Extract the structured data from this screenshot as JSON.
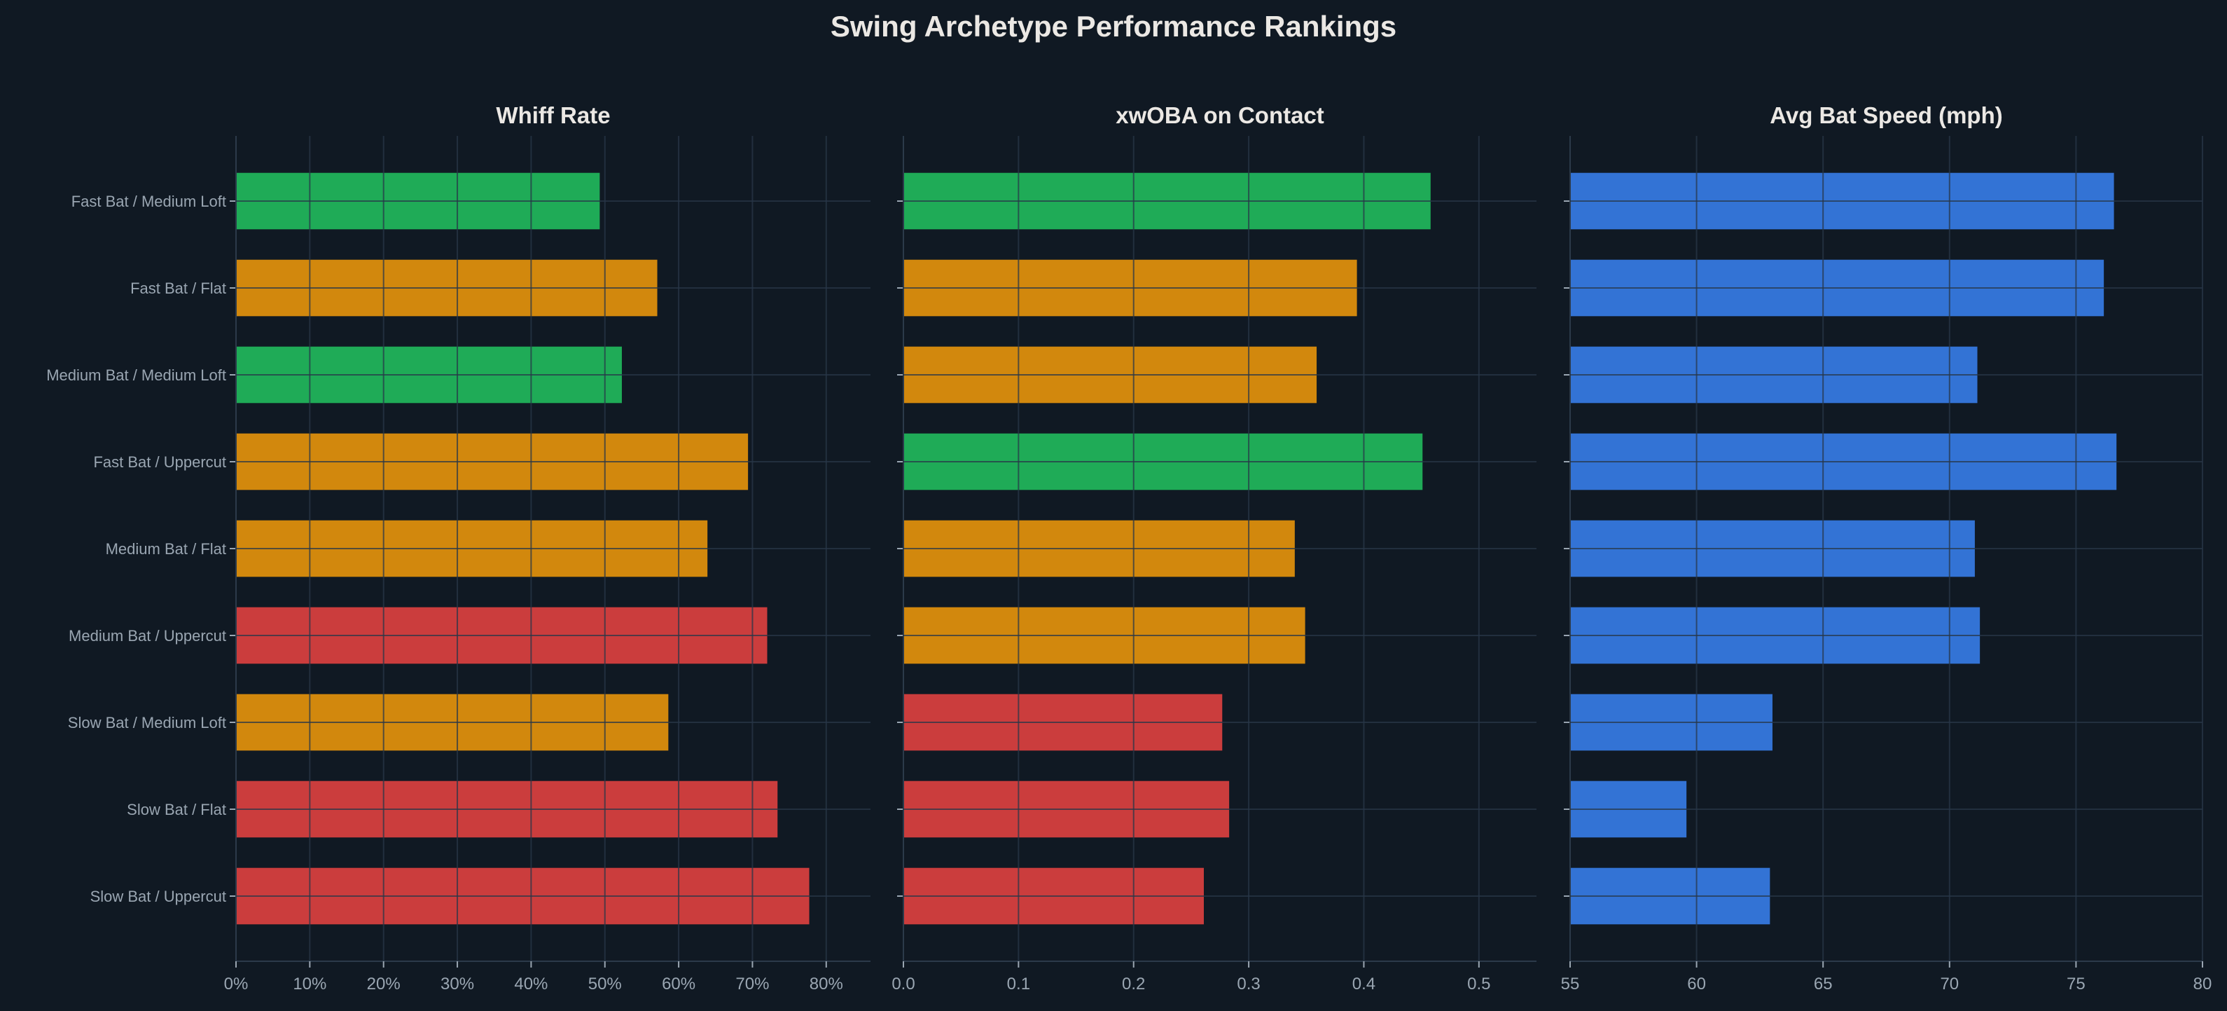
{
  "title": "Swing Archetype Performance Rankings",
  "colors": {
    "background": "#101923",
    "good": "#1fab57",
    "mid": "#d2880d",
    "bad": "#cb3d3d",
    "speed": "#3373d5",
    "text": "#ebe8e4",
    "tick": "#9aa6b2",
    "grid": "#1e2a38",
    "spine": "#2c3a4a"
  },
  "chart_data": [
    {
      "type": "bar",
      "orientation": "horizontal",
      "title": "Whiff Rate",
      "categories": [
        "Fast Bat / Medium Loft",
        "Fast Bat / Flat",
        "Medium Bat / Medium Loft",
        "Fast Bat / Uppercut",
        "Medium Bat / Flat",
        "Medium Bat / Uppercut",
        "Slow Bat / Medium Loft",
        "Slow Bat / Flat",
        "Slow Bat / Uppercut"
      ],
      "values": [
        0.493,
        0.571,
        0.523,
        0.694,
        0.639,
        0.72,
        0.586,
        0.734,
        0.777
      ],
      "bar_colors": [
        "good",
        "mid",
        "good",
        "mid",
        "mid",
        "bad",
        "mid",
        "bad",
        "bad"
      ],
      "xlim": [
        0,
        0.86
      ],
      "xticks": [
        0,
        0.1,
        0.2,
        0.3,
        0.4,
        0.5,
        0.6,
        0.7,
        0.8
      ],
      "xtick_labels": [
        "0%",
        "10%",
        "20%",
        "30%",
        "40%",
        "50%",
        "60%",
        "70%",
        "80%"
      ],
      "grid": true
    },
    {
      "type": "bar",
      "orientation": "horizontal",
      "title": "xwOBA on Contact",
      "categories": [
        "Fast Bat / Medium Loft",
        "Fast Bat / Flat",
        "Medium Bat / Medium Loft",
        "Fast Bat / Uppercut",
        "Medium Bat / Flat",
        "Medium Bat / Uppercut",
        "Slow Bat / Medium Loft",
        "Slow Bat / Flat",
        "Slow Bat / Uppercut"
      ],
      "values": [
        0.458,
        0.394,
        0.359,
        0.451,
        0.34,
        0.349,
        0.277,
        0.283,
        0.261
      ],
      "bar_colors": [
        "good",
        "mid",
        "mid",
        "good",
        "mid",
        "mid",
        "bad",
        "bad",
        "bad"
      ],
      "xlim": [
        0,
        0.55
      ],
      "xticks": [
        0,
        0.1,
        0.2,
        0.3,
        0.4,
        0.5
      ],
      "xtick_labels": [
        "0.0",
        "0.1",
        "0.2",
        "0.3",
        "0.4",
        "0.5"
      ],
      "grid": true
    },
    {
      "type": "bar",
      "orientation": "horizontal",
      "title": "Avg Bat Speed (mph)",
      "categories": [
        "Fast Bat / Medium Loft",
        "Fast Bat / Flat",
        "Medium Bat / Medium Loft",
        "Fast Bat / Uppercut",
        "Medium Bat / Flat",
        "Medium Bat / Uppercut",
        "Slow Bat / Medium Loft",
        "Slow Bat / Flat",
        "Slow Bat / Uppercut"
      ],
      "values": [
        76.5,
        76.1,
        71.1,
        76.6,
        71.0,
        71.2,
        63.0,
        59.6,
        62.9
      ],
      "bar_colors": [
        "speed",
        "speed",
        "speed",
        "speed",
        "speed",
        "speed",
        "speed",
        "speed",
        "speed"
      ],
      "xlim": [
        55,
        80
      ],
      "xticks": [
        55,
        60,
        65,
        70,
        75,
        80
      ],
      "xtick_labels": [
        "55",
        "60",
        "65",
        "70",
        "75",
        "80"
      ],
      "grid": true
    }
  ]
}
